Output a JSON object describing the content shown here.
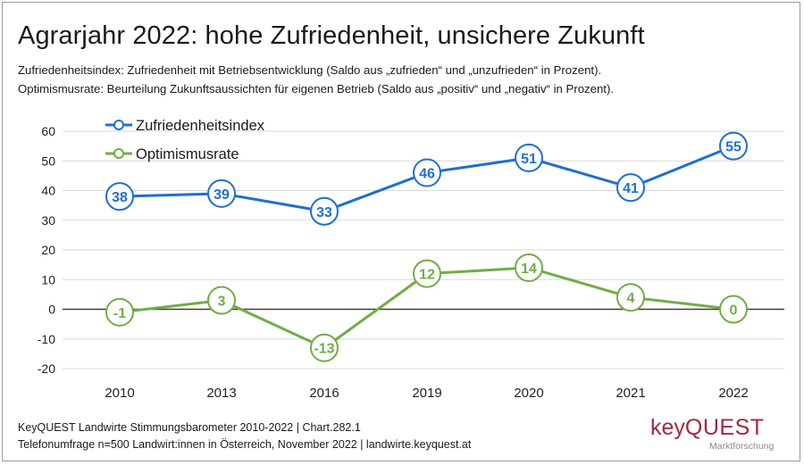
{
  "title": "Agrarjahr 2022: hohe Zufriedenheit, unsichere Zukunft",
  "subtitle_line1": "Zufriedenheitsindex: Zufriedenheit mit Betriebsentwicklung (Saldo aus „zufrieden“ und „unzufrieden“ in Prozent).",
  "subtitle_line2": "Optimismusrate: Beurteilung Zukunftsaussichten für eigenen Betrieb (Saldo aus „positiv“ und „negativ“ in Prozent).",
  "footer_line1": "KeyQUEST Landwirte Stimmungsbarometer 2010-2022  | Chart.282.1",
  "footer_line2": "Telefonumfrage n=500 Landwirt:innen in Österreich, November 2022 | landwirte.keyquest.at",
  "logo": {
    "key": "key",
    "quest": "QUEST",
    "tagline": "Marktforschung"
  },
  "chart_data": {
    "type": "line",
    "categories": [
      "2010",
      "2013",
      "2016",
      "2019",
      "2020",
      "2021",
      "2022"
    ],
    "ylim": [
      -20,
      60
    ],
    "yticks": [
      60,
      50,
      40,
      30,
      20,
      10,
      0,
      -10,
      -20
    ],
    "grid": true,
    "legend_position": "top-left",
    "series": [
      {
        "name": "Zufriedenheitsindex",
        "color": "#1f6fd1",
        "values": [
          38,
          39,
          33,
          46,
          51,
          41,
          55
        ]
      },
      {
        "name": "Optimismusrate",
        "color": "#70ad47",
        "values": [
          -1,
          3,
          -13,
          12,
          14,
          4,
          0
        ]
      }
    ]
  }
}
